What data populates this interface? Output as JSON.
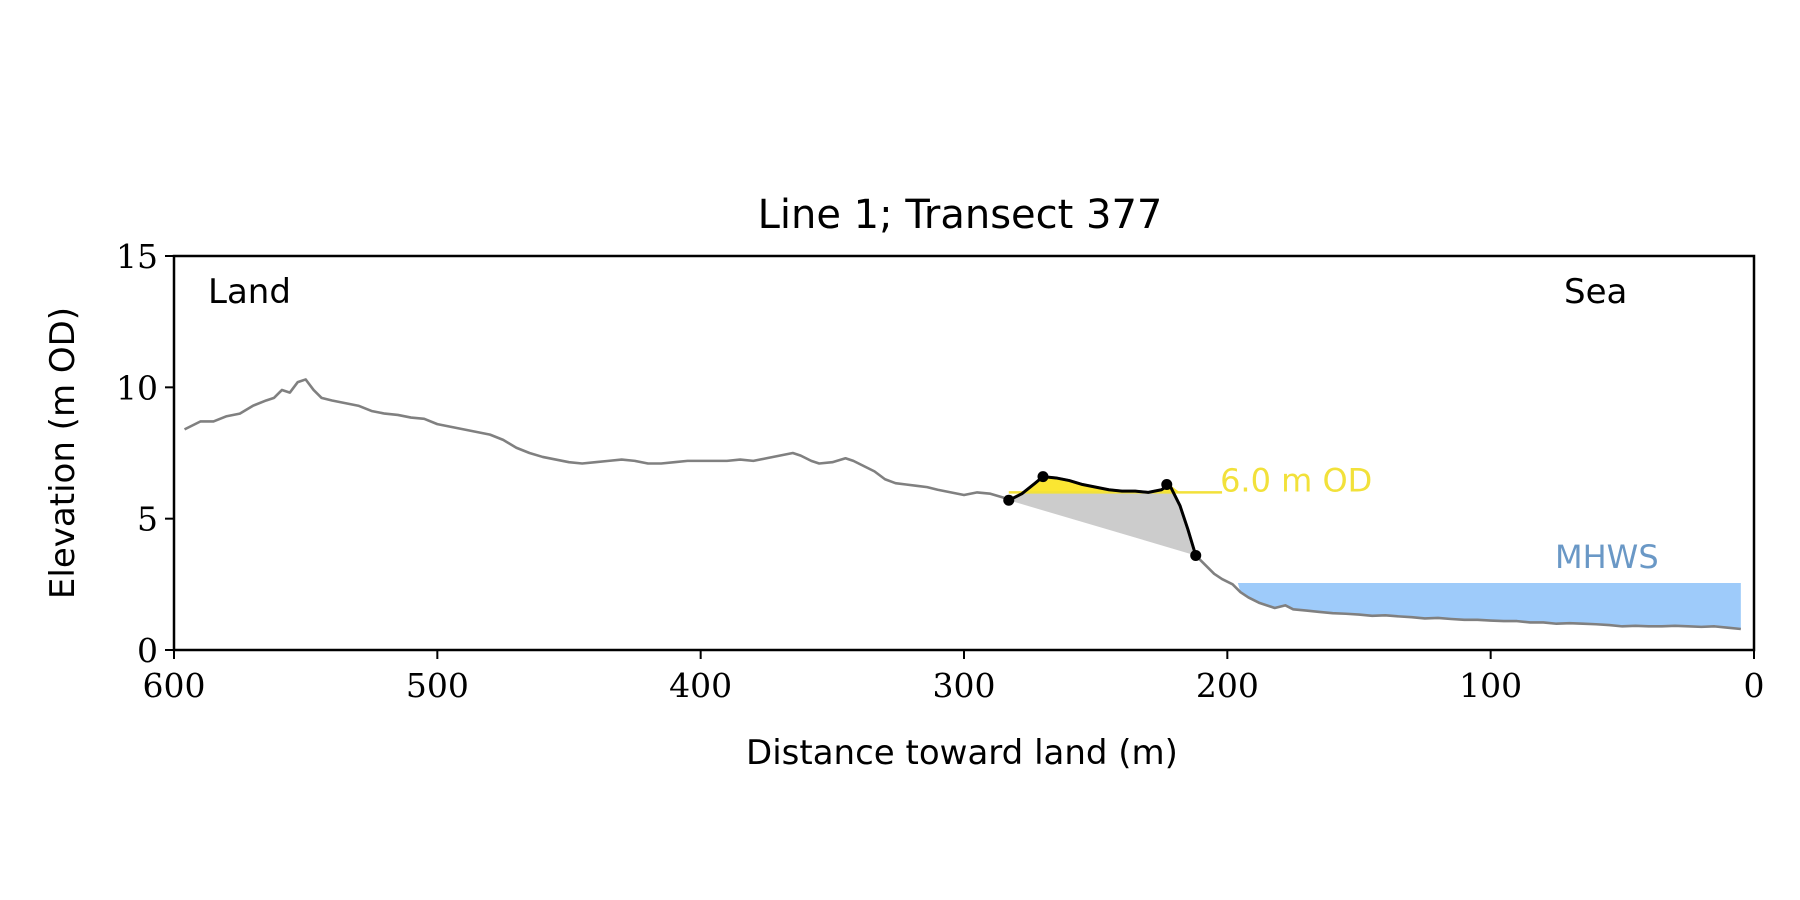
{
  "chart_data": {
    "type": "line",
    "title": "Line 1; Transect 377",
    "xlabel": "Distance toward land (m)",
    "ylabel": "Elevation (m OD)",
    "xlim": [
      600,
      0
    ],
    "ylim": [
      0,
      15
    ],
    "x_ticks": [
      "600",
      "500",
      "400",
      "300",
      "200",
      "100",
      "0"
    ],
    "y_ticks": [
      "0",
      "5",
      "10",
      "15"
    ],
    "grid": false,
    "left_label": "Land",
    "right_label": "Sea",
    "series": [
      {
        "role": "profile",
        "color": "#808080",
        "x": [
          596,
          590,
          585,
          580,
          575,
          570,
          565,
          562,
          559,
          556,
          553,
          550,
          547,
          544,
          540,
          535,
          530,
          525,
          520,
          515,
          510,
          505,
          500,
          495,
          490,
          485,
          480,
          475,
          470,
          465,
          460,
          455,
          450,
          445,
          440,
          435,
          430,
          425,
          420,
          415,
          410,
          405,
          400,
          395,
          390,
          385,
          380,
          375,
          370,
          365,
          362,
          358,
          355,
          350,
          345,
          342,
          338,
          334,
          330,
          326,
          322,
          318,
          314,
          310,
          305,
          300,
          295,
          290,
          285,
          283,
          278,
          273,
          270,
          265,
          260,
          255,
          250,
          245,
          240,
          235,
          230,
          225,
          222,
          218,
          215,
          212,
          208,
          205,
          202,
          200,
          198,
          195,
          192,
          188,
          185,
          182,
          178,
          175,
          170,
          165,
          160,
          155,
          150,
          145,
          140,
          135,
          130,
          125,
          120,
          115,
          110,
          105,
          100,
          95,
          90,
          85,
          80,
          75,
          70,
          65,
          60,
          55,
          50,
          45,
          40,
          35,
          30,
          25,
          20,
          15,
          10,
          5
        ],
        "y": [
          8.4,
          8.7,
          8.7,
          8.9,
          9.0,
          9.3,
          9.5,
          9.6,
          9.9,
          9.8,
          10.2,
          10.3,
          9.9,
          9.6,
          9.5,
          9.4,
          9.3,
          9.1,
          9.0,
          8.95,
          8.85,
          8.8,
          8.6,
          8.5,
          8.4,
          8.3,
          8.2,
          8.0,
          7.7,
          7.5,
          7.35,
          7.25,
          7.15,
          7.1,
          7.15,
          7.2,
          7.25,
          7.2,
          7.1,
          7.1,
          7.15,
          7.2,
          7.2,
          7.2,
          7.2,
          7.25,
          7.2,
          7.3,
          7.4,
          7.5,
          7.4,
          7.2,
          7.1,
          7.15,
          7.3,
          7.2,
          7.0,
          6.8,
          6.5,
          6.35,
          6.3,
          6.25,
          6.2,
          6.1,
          6.0,
          5.9,
          6.0,
          5.95,
          5.8,
          5.7,
          5.95,
          6.35,
          6.6,
          6.55,
          6.45,
          6.3,
          6.2,
          6.1,
          6.05,
          6.05,
          6.0,
          6.1,
          6.3,
          5.5,
          4.6,
          3.6,
          3.2,
          2.9,
          2.7,
          2.6,
          2.5,
          2.2,
          2.0,
          1.8,
          1.7,
          1.6,
          1.7,
          1.55,
          1.5,
          1.45,
          1.4,
          1.38,
          1.35,
          1.3,
          1.32,
          1.28,
          1.25,
          1.2,
          1.22,
          1.18,
          1.15,
          1.15,
          1.12,
          1.1,
          1.1,
          1.05,
          1.05,
          1.0,
          1.02,
          1.0,
          0.98,
          0.95,
          0.9,
          0.92,
          0.9,
          0.9,
          0.92,
          0.9,
          0.88,
          0.9,
          0.85,
          0.8
        ]
      },
      {
        "role": "dune",
        "color": "#000000",
        "x": [
          283,
          278,
          273,
          270,
          265,
          260,
          255,
          250,
          245,
          240,
          235,
          230,
          225,
          222,
          218,
          215,
          212
        ],
        "y": [
          5.7,
          5.95,
          6.35,
          6.6,
          6.55,
          6.45,
          6.3,
          6.2,
          6.1,
          6.05,
          6.05,
          6.0,
          6.1,
          6.3,
          5.5,
          4.6,
          3.6
        ]
      }
    ],
    "points": [
      {
        "x": 283,
        "y": 5.7
      },
      {
        "x": 270,
        "y": 6.6
      },
      {
        "x": 223,
        "y": 6.3
      },
      {
        "x": 212,
        "y": 3.6
      }
    ],
    "reference_lines": [
      {
        "label": "6.0 m OD",
        "y": 6.0,
        "x_from": 283,
        "x_to": 202,
        "color": "#f2e13a"
      }
    ],
    "shaded_regions": [
      {
        "role": "mhws",
        "label": "MHWS",
        "level": 2.55,
        "x_from": 196,
        "x_to": 5,
        "color": "#9ecbfa",
        "label_color": "#6a98c6"
      },
      {
        "role": "wedge",
        "color": "#cccccc"
      },
      {
        "role": "above-6m",
        "color": "#fbe632"
      }
    ]
  }
}
